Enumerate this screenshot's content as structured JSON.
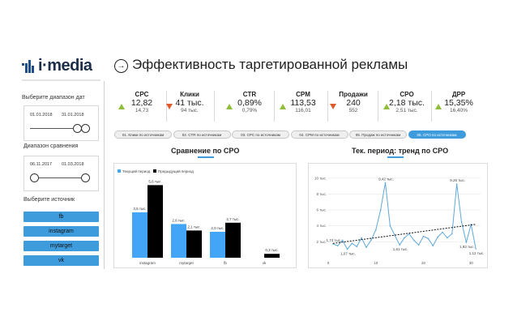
{
  "brand": {
    "logo_text": "i·media"
  },
  "header": {
    "title": "Эффективность таргетированной рекламы"
  },
  "sidebar": {
    "date_range_label": "Выберите диапазон дат",
    "date_from": "01.01.2018",
    "date_to": "31.01.2018",
    "compare_label": "Диапазон сравнения",
    "compare_from": "06.11.2017",
    "compare_to": "01.03.2018",
    "source_label": "Выберите источник",
    "sources": [
      "fb",
      "instagram",
      "mytarget",
      "vk"
    ]
  },
  "kpis": [
    {
      "label": "CPC",
      "value": "12,82",
      "prev": "14,73",
      "trend": "up"
    },
    {
      "label": "Клики",
      "value": "41 тыс.",
      "prev": "94 тыс.",
      "trend": "down"
    },
    {
      "label": "CTR",
      "value": "0,89%",
      "prev": "0,79%",
      "trend": "up"
    },
    {
      "label": "CPM",
      "value": "113,53",
      "prev": "116,01",
      "trend": "up"
    },
    {
      "label": "Продажи",
      "value": "240",
      "prev": "552",
      "trend": "down"
    },
    {
      "label": "CPO",
      "value": "2,18 тыс.",
      "prev": "2,51 тыс.",
      "trend": "up"
    },
    {
      "label": "ДРР",
      "value": "15,35%",
      "prev": "16,40%",
      "trend": "up"
    }
  ],
  "tabs": [
    "01. Клики по источникам",
    "02. CTR по источникам",
    "03. CPC по источникам",
    "04. CPM по источникам",
    "05. Продаж по источникам",
    "06. CPO по источникам"
  ],
  "active_tab": 5,
  "colors": {
    "accent": "#3e9bdc",
    "current": "#42a5f5",
    "previous": "#000000",
    "up": "#8fbf3a",
    "down": "#e05a2b"
  },
  "chart_data": [
    {
      "type": "bar",
      "title": "Сравнение по CPO",
      "legend": [
        "Текущий период",
        "Предыдущий период"
      ],
      "legend_position": "top-left",
      "categories": [
        "instagram",
        "mytarget",
        "fb",
        "vk"
      ],
      "series": [
        {
          "name": "Текущий период",
          "values": [
            3.5,
            2.6,
            2.0,
            null
          ],
          "labels": [
            "3,5 тыс.",
            "2,6 тыс.",
            "2,0 тыс.",
            ""
          ]
        },
        {
          "name": "Предыдущий период",
          "values": [
            5.6,
            2.1,
            2.7,
            0.3
          ],
          "labels": [
            "5,6 тыс.",
            "2,1 тыс.",
            "2,7 тыс.",
            "0,3 тыс."
          ]
        }
      ],
      "ylim": [
        0,
        6
      ]
    },
    {
      "type": "line",
      "title": "Тек. период: тренд по CPO",
      "yticks": [
        "2 тыс.",
        "4 тыс.",
        "6 тыс.",
        "8 тыс.",
        "10 тыс."
      ],
      "xticks": [
        0,
        10,
        20,
        30
      ],
      "xlim": [
        0,
        32
      ],
      "ylim": [
        0,
        11
      ],
      "x": [
        1,
        2,
        3,
        4,
        5,
        6,
        7,
        8,
        9,
        10,
        11,
        12,
        13,
        14,
        15,
        16,
        17,
        18,
        19,
        20,
        21,
        22,
        23,
        24,
        25,
        26,
        27,
        28,
        29,
        30,
        31
      ],
      "y": [
        1.74,
        1.5,
        2.2,
        1.07,
        1.8,
        1.4,
        2.5,
        1.3,
        2.2,
        3.5,
        6.0,
        9.42,
        4.0,
        2.8,
        1.61,
        2.5,
        3.0,
        2.2,
        1.6,
        2.7,
        2.4,
        1.5,
        2.6,
        3.2,
        2.5,
        3.0,
        9.26,
        4.5,
        1.93,
        4.2,
        1.12
      ],
      "point_labels": [
        {
          "x": 1,
          "y": 1.74,
          "text": "1,74 тыс."
        },
        {
          "x": 4,
          "y": 1.07,
          "text": "1,07 тыс."
        },
        {
          "x": 12,
          "y": 9.42,
          "text": "9,42 тыс."
        },
        {
          "x": 15,
          "y": 1.61,
          "text": "1,61 тыс."
        },
        {
          "x": 27,
          "y": 9.26,
          "text": "9,26 тыс."
        },
        {
          "x": 29,
          "y": 1.93,
          "text": "1,93 тыс."
        },
        {
          "x": 31,
          "y": 1.12,
          "text": "1,12 тыс."
        }
      ],
      "trendline": {
        "from": [
          1,
          1.8
        ],
        "to": [
          31,
          4.2
        ]
      },
      "grid": true
    }
  ]
}
